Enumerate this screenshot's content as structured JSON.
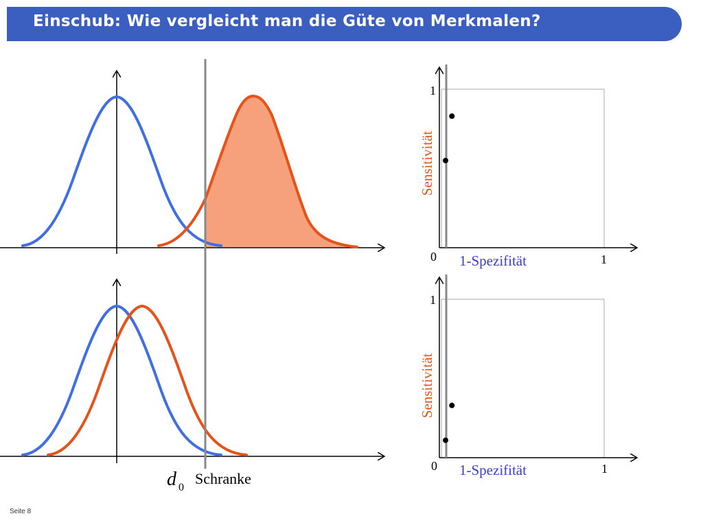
{
  "title": "Einschub: Wie vergleicht man die Güte von Merkmalen?",
  "threshold": {
    "symbol": "d",
    "subscript": "0",
    "label": "Schranke"
  },
  "roc_plots": [
    {
      "ylabel": "Sensitivität",
      "xlabel": "1-Spezifität",
      "origin": "0",
      "x_end": "1",
      "y_end": "1",
      "points": [
        {
          "x": 0.0,
          "y": 0.55
        },
        {
          "x": 0.04,
          "y": 0.83
        }
      ]
    },
    {
      "ylabel": "Sensitivität",
      "xlabel": "1-Spezifität",
      "origin": "0",
      "x_end": "1",
      "y_end": "1",
      "points": [
        {
          "x": 0.0,
          "y": 0.11
        },
        {
          "x": 0.04,
          "y": 0.33
        }
      ]
    }
  ],
  "colors": {
    "title_bar": "#3a5fc0",
    "curve_a": "#3f6fe0",
    "curve_b": "#e5531a",
    "fill": "#f7a07c",
    "ylabel": "#e5531a",
    "xlabel": "#3a3ad0",
    "threshold": "#888888"
  },
  "footer": "Seite 8"
}
